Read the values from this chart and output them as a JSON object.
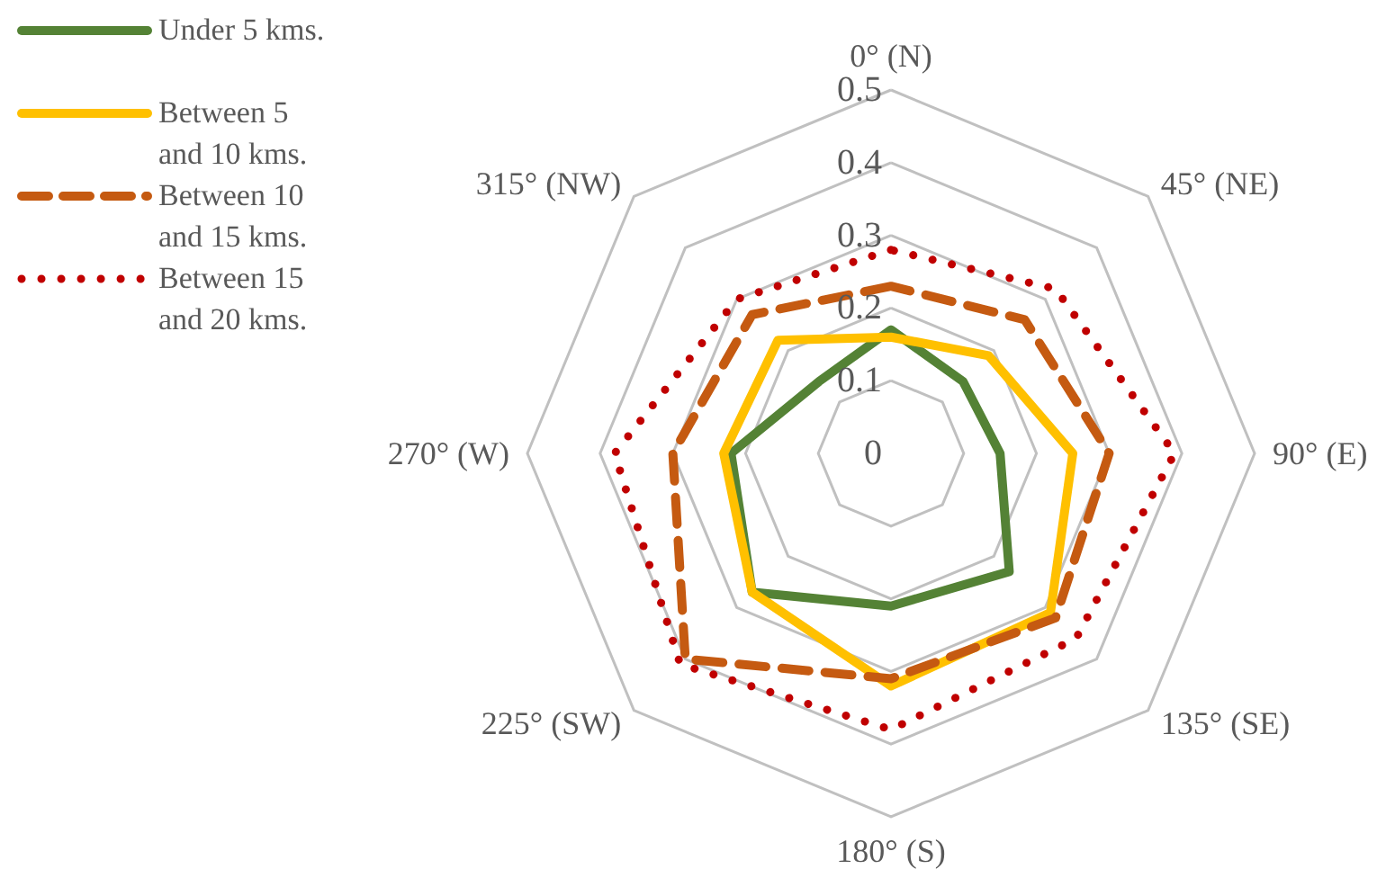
{
  "chart_data": {
    "type": "radar",
    "categories": [
      "0° (N)",
      "45° (NE)",
      "90° (E)",
      "135° (SE)",
      "180° (S)",
      "225° (SW)",
      "270° (W)",
      "315° (NW)"
    ],
    "series": [
      {
        "name": "Under 5 kms.",
        "color": "#548235",
        "line_style": "solid",
        "values": [
          0.17,
          0.14,
          0.15,
          0.23,
          0.21,
          0.27,
          0.22,
          0.14
        ]
      },
      {
        "name": "Between 5 and 10 kms.",
        "color": "#ffc000",
        "line_style": "solid",
        "values": [
          0.16,
          0.19,
          0.25,
          0.31,
          0.32,
          0.27,
          0.23,
          0.22
        ]
      },
      {
        "name": "Between 10 and 15 kms.",
        "color": "#c55a11",
        "line_style": "dashed",
        "values": [
          0.23,
          0.26,
          0.3,
          0.32,
          0.31,
          0.4,
          0.3,
          0.27
        ]
      },
      {
        "name": "Between 15 and 20 kms.",
        "color": "#c00000",
        "line_style": "dotted",
        "values": [
          0.28,
          0.32,
          0.39,
          0.36,
          0.38,
          0.41,
          0.38,
          0.3
        ]
      }
    ],
    "ylim": [
      0,
      0.5
    ],
    "yticks": [
      0,
      0.1,
      0.2,
      0.3,
      0.4,
      0.5
    ],
    "grid": true,
    "legend": "top left",
    "marker": "none"
  }
}
